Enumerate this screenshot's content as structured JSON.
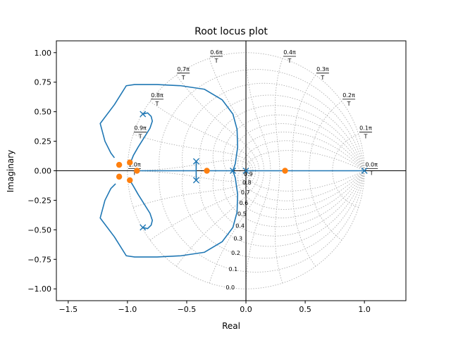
{
  "chart_data": {
    "type": "line",
    "title": "Root locus plot",
    "xlabel": "Real",
    "ylabel": "Imaginary",
    "xlim": [
      -1.6,
      1.35
    ],
    "ylim": [
      -1.1,
      1.1
    ],
    "xticks": [
      -1.5,
      -1.0,
      -0.5,
      0.0,
      0.5,
      1.0
    ],
    "xtick_labels": [
      "−1.5",
      "−1.0",
      "−0.5",
      "0.0",
      "0.5",
      "1.0"
    ],
    "yticks": [
      -1.0,
      -0.75,
      -0.5,
      -0.25,
      0.0,
      0.25,
      0.5,
      0.75,
      1.0
    ],
    "ytick_labels": [
      "−1.00",
      "−0.75",
      "−0.50",
      "−0.25",
      "0.00",
      "0.25",
      "0.50",
      "0.75",
      "1.00"
    ],
    "grid": "z-plane damping/frequency grid (dotted)",
    "colors": {
      "locus": "#1f77b4",
      "poles": "#1f77b4",
      "zeros": "#ff7f0e",
      "grid": "#b0b0b0",
      "axes": "#000000"
    },
    "damping_labels": [
      "0.9",
      "0.8",
      "0.7",
      "0.6",
      "0.5",
      "0.4",
      "0.3",
      "0.2",
      "0.1",
      "0.0"
    ],
    "damping_values": [
      0.9,
      0.8,
      0.7,
      0.6,
      0.5,
      0.4,
      0.3,
      0.2,
      0.1,
      0.0
    ],
    "freq_labels": [
      {
        "num": "0.0π",
        "den": "T",
        "value": 0.0
      },
      {
        "num": "0.1π",
        "den": "T",
        "value": 0.1
      },
      {
        "num": "0.2π",
        "den": "T",
        "value": 0.2
      },
      {
        "num": "0.3π",
        "den": "T",
        "value": 0.3
      },
      {
        "num": "0.4π",
        "den": "T",
        "value": 0.4
      },
      {
        "num": "0.6π",
        "den": "T",
        "value": 0.6
      },
      {
        "num": "0.7π",
        "den": "T",
        "value": 0.7
      },
      {
        "num": "0.8π",
        "den": "T",
        "value": 0.8
      },
      {
        "num": "0.9π",
        "den": "T",
        "value": 0.9
      },
      {
        "num": "1.0π",
        "den": "T",
        "value": 1.0
      }
    ],
    "poles": [
      {
        "x": -0.87,
        "y": 0.48
      },
      {
        "x": -0.87,
        "y": -0.48
      },
      {
        "x": -0.42,
        "y": 0.08
      },
      {
        "x": -0.42,
        "y": -0.08
      },
      {
        "x": -0.11,
        "y": 0.0
      },
      {
        "x": 0.0,
        "y": 0.0
      },
      {
        "x": 1.0,
        "y": 0.0
      }
    ],
    "zeros": [
      {
        "x": -1.07,
        "y": 0.05
      },
      {
        "x": -1.07,
        "y": -0.05
      },
      {
        "x": -0.98,
        "y": 0.07
      },
      {
        "x": -0.98,
        "y": -0.08
      },
      {
        "x": -0.92,
        "y": 0.0
      },
      {
        "x": -0.33,
        "y": 0.0
      },
      {
        "x": 0.33,
        "y": 0.0
      }
    ],
    "series": [
      {
        "values": [
          [
            -0.87,
            0.48
          ],
          [
            -0.83,
            0.49
          ],
          [
            -0.8,
            0.46
          ],
          [
            -0.79,
            0.42
          ],
          [
            -0.81,
            0.36
          ],
          [
            -0.86,
            0.28
          ],
          [
            -0.91,
            0.2
          ],
          [
            -0.95,
            0.13
          ],
          [
            -0.97,
            0.08
          ]
        ]
      },
      {
        "values": [
          [
            -0.87,
            -0.48
          ],
          [
            -0.83,
            -0.49
          ],
          [
            -0.8,
            -0.46
          ],
          [
            -0.79,
            -0.42
          ],
          [
            -0.81,
            -0.36
          ],
          [
            -0.86,
            -0.28
          ],
          [
            -0.91,
            -0.2
          ],
          [
            -0.95,
            -0.13
          ],
          [
            -0.98,
            -0.08
          ]
        ]
      },
      {
        "values": [
          [
            -0.11,
            0.0
          ],
          [
            -0.09,
            0.06
          ],
          [
            -0.07,
            0.2
          ],
          [
            -0.075,
            0.35
          ],
          [
            -0.11,
            0.48
          ],
          [
            -0.2,
            0.6
          ],
          [
            -0.35,
            0.69
          ],
          [
            -0.55,
            0.72
          ],
          [
            -0.75,
            0.73
          ],
          [
            -0.86,
            0.73
          ],
          [
            -0.94,
            0.73
          ],
          [
            -1.01,
            0.72
          ],
          [
            -1.11,
            0.56
          ],
          [
            -1.23,
            0.4
          ],
          [
            -1.19,
            0.25
          ],
          [
            -1.14,
            0.15
          ],
          [
            -1.11,
            0.11
          ]
        ]
      },
      {
        "values": [
          [
            -0.11,
            0.0
          ],
          [
            -0.09,
            -0.06
          ],
          [
            -0.07,
            -0.2
          ],
          [
            -0.075,
            -0.35
          ],
          [
            -0.11,
            -0.48
          ],
          [
            -0.2,
            -0.6
          ],
          [
            -0.35,
            -0.69
          ],
          [
            -0.55,
            -0.72
          ],
          [
            -0.75,
            -0.73
          ],
          [
            -0.86,
            -0.73
          ],
          [
            -0.94,
            -0.73
          ],
          [
            -1.01,
            -0.72
          ],
          [
            -1.11,
            -0.56
          ],
          [
            -1.23,
            -0.4
          ],
          [
            -1.19,
            -0.25
          ],
          [
            -1.14,
            -0.15
          ],
          [
            -1.1,
            -0.11
          ]
        ]
      },
      {
        "values": [
          [
            -0.42,
            0.08
          ],
          [
            -0.42,
            0.0
          ],
          [
            -0.42,
            -0.08
          ]
        ]
      },
      {
        "values": [
          [
            -0.11,
            0.0
          ],
          [
            -0.22,
            0.0
          ],
          [
            -0.33,
            0.0
          ]
        ]
      },
      {
        "values": [
          [
            -0.42,
            0.0
          ],
          [
            -0.6,
            0.0
          ],
          [
            -0.8,
            0.0
          ],
          [
            -0.92,
            0.0
          ]
        ]
      },
      {
        "values": [
          [
            0.0,
            0.0
          ],
          [
            0.33,
            0.0
          ]
        ]
      },
      {
        "values": [
          [
            1.0,
            0.0
          ],
          [
            0.66,
            0.0
          ],
          [
            0.33,
            0.0
          ]
        ]
      }
    ]
  }
}
